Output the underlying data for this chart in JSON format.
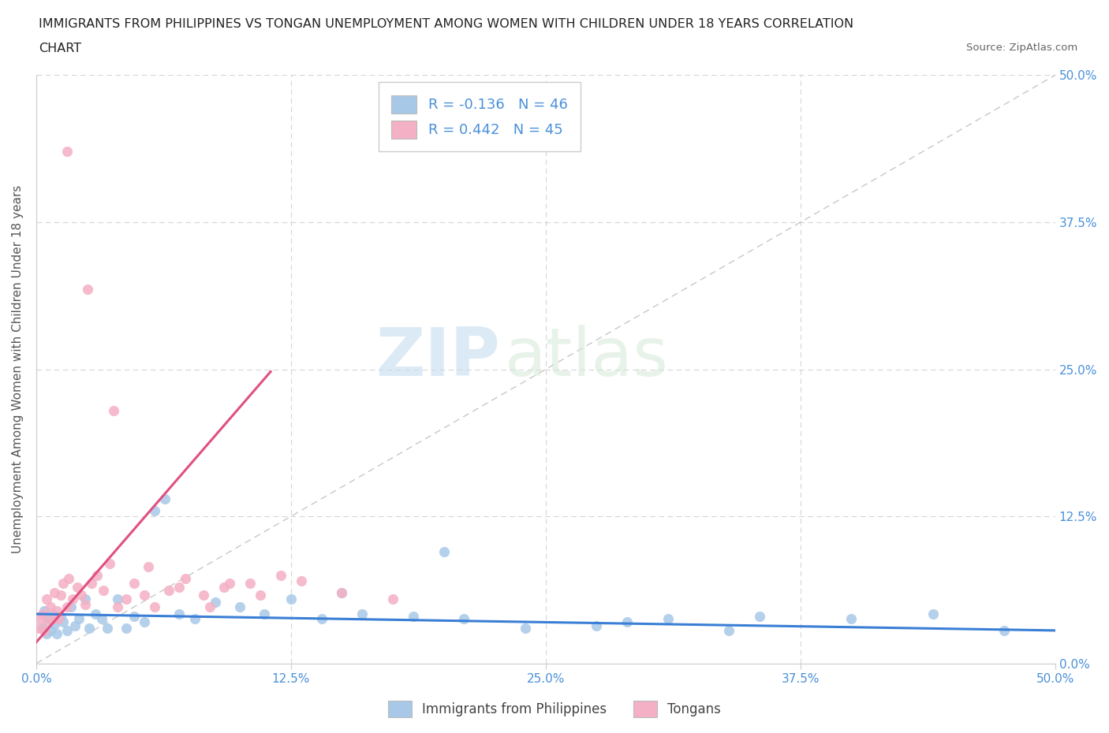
{
  "title_line1": "IMMIGRANTS FROM PHILIPPINES VS TONGAN UNEMPLOYMENT AMONG WOMEN WITH CHILDREN UNDER 18 YEARS CORRELATION",
  "title_line2": "CHART",
  "source": "Source: ZipAtlas.com",
  "ylabel": "Unemployment Among Women with Children Under 18 years",
  "xlim": [
    0.0,
    0.5
  ],
  "ylim": [
    0.0,
    0.5
  ],
  "tick_vals": [
    0.0,
    0.125,
    0.25,
    0.375,
    0.5
  ],
  "tick_labels": [
    "0.0%",
    "12.5%",
    "25.0%",
    "37.5%",
    "50.0%"
  ],
  "blue_R": -0.136,
  "blue_N": 46,
  "pink_R": 0.442,
  "pink_N": 45,
  "blue_color": "#a8c8e8",
  "pink_color": "#f4b0c4",
  "blue_line_color": "#3a7fd5",
  "pink_line_color": "#e05080",
  "diagonal_color": "#b0b0b0",
  "axis_color": "#4a90d9",
  "watermark_zip": "ZIP",
  "watermark_atlas": "atlas",
  "blue_x": [
    0.003,
    0.004,
    0.005,
    0.006,
    0.007,
    0.008,
    0.009,
    0.01,
    0.012,
    0.013,
    0.015,
    0.017,
    0.019,
    0.021,
    0.024,
    0.026,
    0.029,
    0.032,
    0.035,
    0.04,
    0.044,
    0.048,
    0.053,
    0.058,
    0.063,
    0.07,
    0.078,
    0.088,
    0.1,
    0.112,
    0.125,
    0.14,
    0.16,
    0.185,
    0.21,
    0.24,
    0.275,
    0.31,
    0.355,
    0.4,
    0.44,
    0.475,
    0.15,
    0.2,
    0.29,
    0.34
  ],
  "blue_y": [
    0.03,
    0.045,
    0.025,
    0.038,
    0.028,
    0.042,
    0.033,
    0.025,
    0.04,
    0.035,
    0.028,
    0.048,
    0.032,
    0.038,
    0.055,
    0.03,
    0.042,
    0.038,
    0.03,
    0.055,
    0.03,
    0.04,
    0.035,
    0.13,
    0.14,
    0.042,
    0.038,
    0.052,
    0.048,
    0.042,
    0.055,
    0.038,
    0.042,
    0.04,
    0.038,
    0.03,
    0.032,
    0.038,
    0.04,
    0.038,
    0.042,
    0.028,
    0.06,
    0.095,
    0.035,
    0.028
  ],
  "pink_x": [
    0.001,
    0.002,
    0.003,
    0.004,
    0.005,
    0.006,
    0.007,
    0.008,
    0.009,
    0.01,
    0.011,
    0.012,
    0.013,
    0.015,
    0.016,
    0.018,
    0.02,
    0.022,
    0.024,
    0.027,
    0.03,
    0.033,
    0.036,
    0.04,
    0.044,
    0.048,
    0.053,
    0.058,
    0.065,
    0.073,
    0.082,
    0.092,
    0.105,
    0.12,
    0.038,
    0.07,
    0.085,
    0.095,
    0.11,
    0.13,
    0.15,
    0.175,
    0.055,
    0.025,
    0.015
  ],
  "pink_y": [
    0.03,
    0.038,
    0.042,
    0.028,
    0.055,
    0.035,
    0.048,
    0.038,
    0.06,
    0.045,
    0.038,
    0.058,
    0.068,
    0.048,
    0.072,
    0.055,
    0.065,
    0.058,
    0.05,
    0.068,
    0.075,
    0.062,
    0.085,
    0.048,
    0.055,
    0.068,
    0.058,
    0.048,
    0.062,
    0.072,
    0.058,
    0.065,
    0.068,
    0.075,
    0.215,
    0.065,
    0.048,
    0.068,
    0.058,
    0.07,
    0.06,
    0.055,
    0.082,
    0.318,
    0.435
  ],
  "pink_line_x0": 0.0,
  "pink_line_x1": 0.115,
  "pink_line_y0": 0.018,
  "pink_line_y1": 0.248,
  "blue_line_x0": 0.0,
  "blue_line_x1": 0.5,
  "blue_line_y0": 0.042,
  "blue_line_y1": 0.028
}
